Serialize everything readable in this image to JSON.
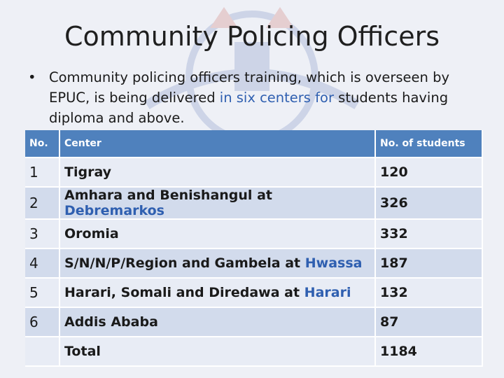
{
  "slide": {
    "title": "Community Policing Officers",
    "bullet": {
      "marker": "•",
      "parts": [
        {
          "text": "Community policing officers training, which is overseen by EPUC, is being delivered ",
          "highlight": false
        },
        {
          "text": "in six centers for",
          "highlight": true
        },
        {
          "text": " students having diploma and above.",
          "highlight": false
        }
      ]
    }
  },
  "table": {
    "headers": {
      "no": "No.",
      "center": "Center",
      "students": "No. of students"
    },
    "rows": [
      {
        "no": "1",
        "center_main": "Tigray",
        "center_hl": "",
        "students": "120"
      },
      {
        "no": "2",
        "center_main": "Amhara and Benishangul at ",
        "center_hl": "Debremarkos",
        "students": "326"
      },
      {
        "no": "3",
        "center_main": "Oromia",
        "center_hl": "",
        "students": "332"
      },
      {
        "no": "4",
        "center_main": "S/N/N/P/Region and Gambela at ",
        "center_hl": "Hwassa",
        "students": "187"
      },
      {
        "no": "5",
        "center_main": "Harari, Somali and Diredawa at ",
        "center_hl": "Harari",
        "students": "132"
      },
      {
        "no": "6",
        "center_main": "Addis Ababa",
        "center_hl": "",
        "students": "87"
      }
    ],
    "total": {
      "label": "Total",
      "students": "1184"
    }
  },
  "colors": {
    "header_bg": "#4f81bd",
    "row_light": "#e8ecf5",
    "row_dark": "#d2dbec",
    "highlight_text": "#2f5fb0"
  }
}
